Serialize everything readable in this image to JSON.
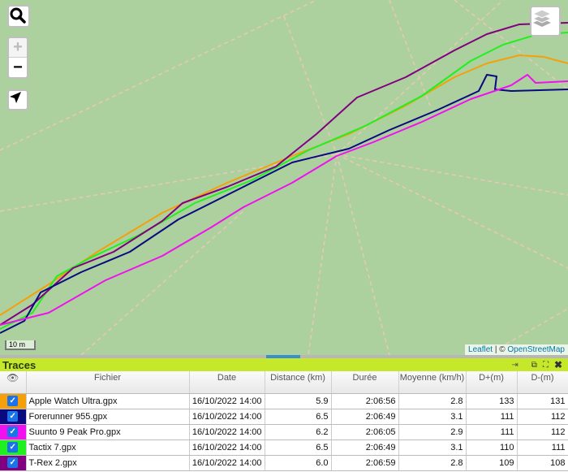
{
  "map": {
    "attribution_leaflet": "Leaflet",
    "attribution_sep": " | © ",
    "attribution_osm": "OpenStreetMap",
    "scale": "10 m",
    "zoom_in": "+",
    "zoom_out": "−"
  },
  "panel": {
    "title": "Traces"
  },
  "table": {
    "headers": [
      "Fichier",
      "Date",
      "Distance (km)",
      "Durée",
      "Moyenne (km/h)",
      "D+(m)",
      "D-(m)"
    ],
    "rows": [
      {
        "color": "#f5a00a",
        "file": "Apple Watch Ultra.gpx",
        "date": "16/10/2022 14:00",
        "distance": "5.9",
        "duration": "2:06:56",
        "avg": "2.8",
        "dplus": "133",
        "dminus": "131"
      },
      {
        "color": "#0a0a80",
        "file": "Forerunner 955.gpx",
        "date": "16/10/2022 14:00",
        "distance": "6.5",
        "duration": "2:06:49",
        "avg": "3.1",
        "dplus": "111",
        "dminus": "112"
      },
      {
        "color": "#f010f0",
        "file": "Suunto 9 Peak Pro.gpx",
        "date": "16/10/2022 14:00",
        "distance": "6.2",
        "duration": "2:06:05",
        "avg": "2.9",
        "dplus": "111",
        "dminus": "112"
      },
      {
        "color": "#20f020",
        "file": "Tactix 7.gpx",
        "date": "16/10/2022 14:00",
        "distance": "6.5",
        "duration": "2:06:49",
        "avg": "3.1",
        "dplus": "110",
        "dminus": "111"
      },
      {
        "color": "#800080",
        "file": "T-Rex 2.gpx",
        "date": "16/10/2022 14:00",
        "distance": "6.0",
        "duration": "2:06:59",
        "avg": "2.8",
        "dplus": "109",
        "dminus": "108"
      }
    ]
  }
}
